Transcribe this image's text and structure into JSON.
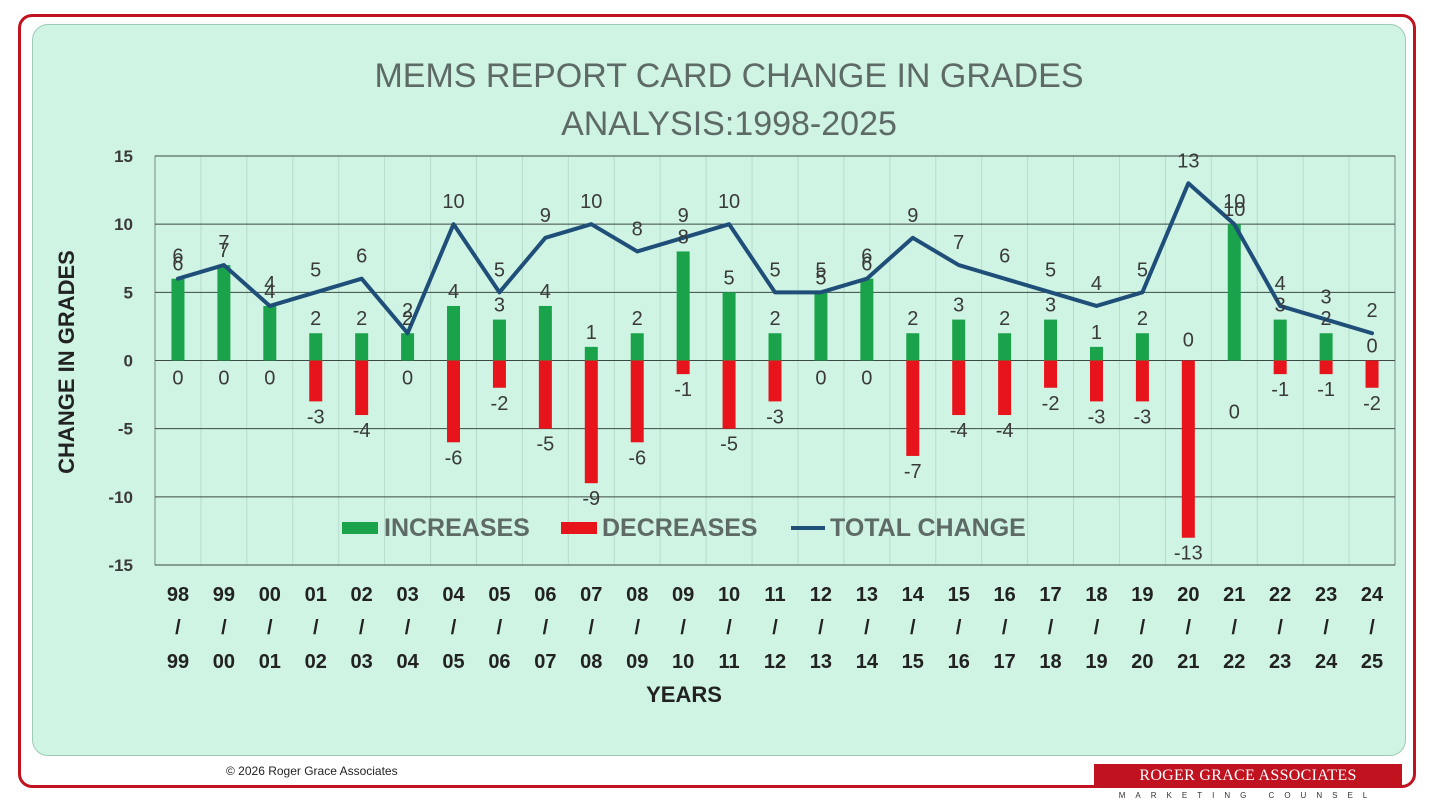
{
  "chart_data": {
    "type": "bar",
    "title_lines": [
      "MEMS REPORT CARD CHANGE IN GRADES",
      "ANALYSIS:1998-2025"
    ],
    "ylabel": "CHANGE IN GRADES",
    "xlabel": "YEARS",
    "ylim": [
      -15,
      15
    ],
    "y_ticks": [
      15,
      10,
      5,
      0,
      -5,
      -10,
      -15
    ],
    "grid": true,
    "legend_position": "bottom-left-inside",
    "categories": [
      {
        "top": "98",
        "sep": "/",
        "bottom": "99"
      },
      {
        "top": "99",
        "sep": "/",
        "bottom": "00"
      },
      {
        "top": "00",
        "sep": "/",
        "bottom": "01"
      },
      {
        "top": "01",
        "sep": "/",
        "bottom": "02"
      },
      {
        "top": "02",
        "sep": "/",
        "bottom": "03"
      },
      {
        "top": "03",
        "sep": "/",
        "bottom": "04"
      },
      {
        "top": "04",
        "sep": "/",
        "bottom": "05"
      },
      {
        "top": "05",
        "sep": "/",
        "bottom": "06"
      },
      {
        "top": "06",
        "sep": "/",
        "bottom": "07"
      },
      {
        "top": "07",
        "sep": "/",
        "bottom": "08"
      },
      {
        "top": "08",
        "sep": "/",
        "bottom": "09"
      },
      {
        "top": "09",
        "sep": "/",
        "bottom": "10"
      },
      {
        "top": "10",
        "sep": "/",
        "bottom": "11"
      },
      {
        "top": "11",
        "sep": "/",
        "bottom": "12"
      },
      {
        "top": "12",
        "sep": "/",
        "bottom": "13"
      },
      {
        "top": "13",
        "sep": "/",
        "bottom": "14"
      },
      {
        "top": "14",
        "sep": "/",
        "bottom": "15"
      },
      {
        "top": "15",
        "sep": "/",
        "bottom": "16"
      },
      {
        "top": "16",
        "sep": "/",
        "bottom": "17"
      },
      {
        "top": "17",
        "sep": "/",
        "bottom": "18"
      },
      {
        "top": "18",
        "sep": "/",
        "bottom": "19"
      },
      {
        "top": "19",
        "sep": "/",
        "bottom": "20"
      },
      {
        "top": "20",
        "sep": "/",
        "bottom": "21"
      },
      {
        "top": "21",
        "sep": "/",
        "bottom": "22"
      },
      {
        "top": "22",
        "sep": "/",
        "bottom": "23"
      },
      {
        "top": "23",
        "sep": "/",
        "bottom": "24"
      },
      {
        "top": "24",
        "sep": "/",
        "bottom": "25"
      }
    ],
    "series": [
      {
        "name": "INCREASES",
        "type": "bar",
        "color": "#1aa34a",
        "values": [
          6,
          7,
          4,
          2,
          2,
          2,
          4,
          3,
          4,
          1,
          2,
          8,
          5,
          2,
          5,
          6,
          2,
          3,
          2,
          3,
          1,
          2,
          0,
          10,
          3,
          2,
          0
        ]
      },
      {
        "name": "DECREASES",
        "type": "bar",
        "color": "#e8141c",
        "values": [
          0,
          0,
          0,
          -3,
          -4,
          0,
          -6,
          -2,
          -5,
          -9,
          -6,
          -1,
          -5,
          -3,
          0,
          0,
          -7,
          -4,
          -4,
          -2,
          -3,
          -3,
          -13,
          0,
          -1,
          -1,
          -2
        ]
      },
      {
        "name": "TOTAL CHANGE",
        "type": "line",
        "color": "#1f4e79",
        "values": [
          6,
          7,
          4,
          5,
          6,
          2,
          10,
          5,
          9,
          10,
          8,
          9,
          10,
          5,
          5,
          6,
          9,
          7,
          6,
          5,
          4,
          5,
          13,
          10,
          4,
          3,
          2
        ]
      }
    ]
  },
  "footer": {
    "copyright": "© 2026 Roger Grace Associates",
    "brand_name": "ROGER GRACE ASSOCIATES",
    "brand_tagline": "MARKETING COUNSEL"
  }
}
